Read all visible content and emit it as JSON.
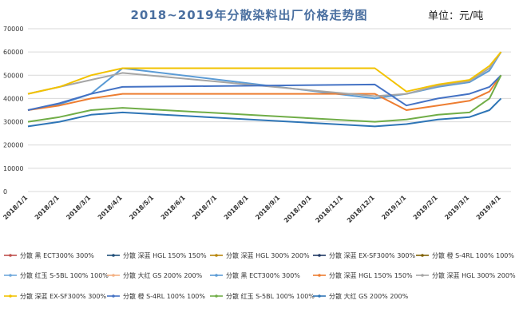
{
  "chart_data": {
    "type": "line",
    "title": "2018~2019年分散染料出厂价格走势图",
    "unit_label": "单位：元/吨",
    "ylim": [
      0,
      70000
    ],
    "yticks": [
      "0",
      "10000",
      "20000",
      "30000",
      "40000",
      "50000",
      "60000",
      "70000"
    ],
    "x_labels": [
      "2018/1/1",
      "2018/2/1",
      "2018/3/1",
      "2018/4/1",
      "2018/5/1",
      "2018/6/1",
      "2018/7/1",
      "2018/8/1",
      "2018/9/1",
      "2018/10/1",
      "2018/11/1",
      "2018/12/1",
      "2019/1/1",
      "2019/2/1",
      "2019/3/1",
      "2019/4/1"
    ],
    "grid": true,
    "legend_position": "bottom",
    "series": [
      {
        "name": "分散 黑 ECT300% 300%",
        "color": "#c0504d",
        "visible": false,
        "x": [],
        "y": []
      },
      {
        "name": "分散 深蓝 HGL 150% 150%",
        "color": "#1f4e79",
        "visible": false,
        "x": [],
        "y": []
      },
      {
        "name": "分散 深蓝 HGL 300% 200%",
        "color": "#b8860b",
        "visible": false,
        "x": [],
        "y": []
      },
      {
        "name": "分散 深蓝 EX-SF300% 300%",
        "color": "#1f3864",
        "visible": false,
        "x": [],
        "y": []
      },
      {
        "name": "分散 橙 S-4RL 100% 100%",
        "color": "#7f6000",
        "visible": false,
        "x": [],
        "y": []
      },
      {
        "name": "分散 红玉 S-5BL 100% 100%",
        "color": "#6fa8dc",
        "visible": false,
        "x": [],
        "y": []
      },
      {
        "name": "分散 大红 GS 200% 200%",
        "color": "#f4b183",
        "visible": false,
        "x": [],
        "y": []
      },
      {
        "name": "分散 黑 ECT300% 300%",
        "color": "#5b9bd5",
        "visible": true,
        "x": [
          "2018/1/1",
          "2018/2/1",
          "2018/3/1",
          "2018/4/1",
          "2018/12/1",
          "2019/1/1",
          "2019/2/1",
          "2019/3/1",
          "2019/3/20",
          "2019/4/1"
        ],
        "y": [
          35000,
          37500,
          42000,
          53000,
          40000,
          42000,
          45000,
          47000,
          52000,
          60000
        ]
      },
      {
        "name": "分散 深蓝 HGL 150% 150%",
        "color": "#ed7d31",
        "visible": true,
        "x": [
          "2018/1/1",
          "2018/2/1",
          "2018/3/1",
          "2018/4/1",
          "2018/12/1",
          "2019/1/1",
          "2019/2/1",
          "2019/3/1",
          "2019/3/20",
          "2019/4/1"
        ],
        "y": [
          35000,
          37000,
          40000,
          42000,
          42000,
          35000,
          37000,
          39000,
          43000,
          50000
        ]
      },
      {
        "name": "分散 深蓝 HGL 300% 200%",
        "color": "#a5a5a5",
        "visible": true,
        "x": [
          "2018/1/1",
          "2018/2/1",
          "2018/3/1",
          "2018/4/1",
          "2018/12/1",
          "2019/1/1",
          "2019/2/1",
          "2019/3/1",
          "2019/3/20",
          "2019/4/1"
        ],
        "y": [
          42000,
          45000,
          48000,
          51000,
          41000,
          42000,
          45500,
          47500,
          53000,
          60000
        ]
      },
      {
        "name": "分散 深蓝 EX-SF300% 300%",
        "color": "#f2c200",
        "visible": true,
        "x": [
          "2018/1/1",
          "2018/2/1",
          "2018/3/1",
          "2018/4/1",
          "2018/12/1",
          "2019/1/1",
          "2019/2/1",
          "2019/3/1",
          "2019/3/20",
          "2019/4/1"
        ],
        "y": [
          42000,
          45000,
          50000,
          53000,
          53000,
          43000,
          46000,
          48000,
          54000,
          60000
        ]
      },
      {
        "name": "分散 橙 S-4RL 100% 100%",
        "color": "#4472c4",
        "visible": true,
        "x": [
          "2018/1/1",
          "2018/2/1",
          "2018/3/1",
          "2018/4/1",
          "2018/12/1",
          "2019/1/1",
          "2019/2/1",
          "2019/3/1",
          "2019/3/20",
          "2019/4/1"
        ],
        "y": [
          35000,
          38000,
          42000,
          45000,
          46000,
          37000,
          40000,
          42000,
          45000,
          50000
        ]
      },
      {
        "name": "分散 红玉 S-5BL 100% 100%",
        "color": "#70ad47",
        "visible": true,
        "x": [
          "2018/1/1",
          "2018/2/1",
          "2018/3/1",
          "2018/4/1",
          "2018/12/1",
          "2019/1/1",
          "2019/2/1",
          "2019/3/1",
          "2019/3/20",
          "2019/4/1"
        ],
        "y": [
          30000,
          32000,
          35000,
          36000,
          30000,
          31000,
          33000,
          34000,
          40000,
          50000
        ]
      },
      {
        "name": "分散 大红 GS 200% 200%",
        "color": "#2e75b6",
        "visible": true,
        "x": [
          "2018/1/1",
          "2018/2/1",
          "2018/3/1",
          "2018/4/1",
          "2018/12/1",
          "2019/1/1",
          "2019/2/1",
          "2019/3/1",
          "2019/3/20",
          "2019/4/1"
        ],
        "y": [
          28000,
          30000,
          33000,
          34000,
          28000,
          29000,
          31000,
          32000,
          35000,
          40000
        ]
      }
    ]
  }
}
